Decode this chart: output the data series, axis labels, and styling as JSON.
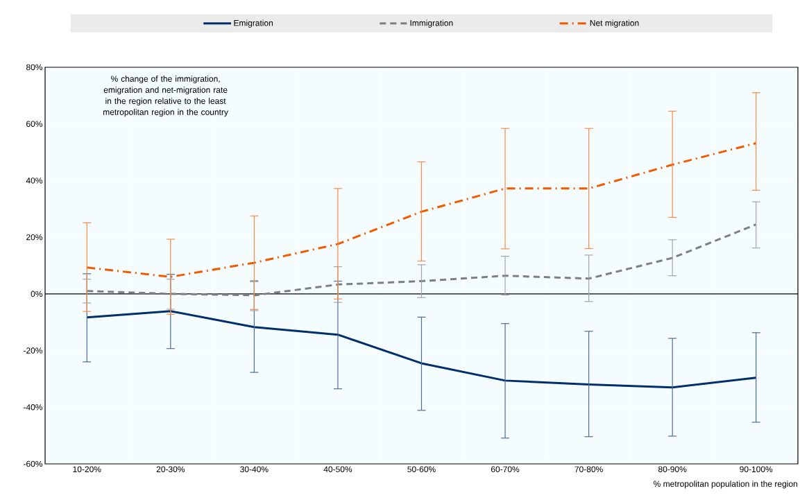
{
  "chart_data": {
    "type": "line",
    "categories": [
      "10-20%",
      "20-30%",
      "30-40%",
      "40-50%",
      "50-60%",
      "60-70%",
      "70-80%",
      "80-90%",
      "90-100%"
    ],
    "xlabel": "% metropolitan population in the region",
    "annotations": [
      "% change of the immigration, emigration and net-migration rate in the region relative to the least metropolitan region in the country"
    ],
    "ylim": [
      -60,
      80
    ],
    "yticks": [
      {
        "value": -60,
        "label": "-60%"
      },
      {
        "value": -40,
        "label": "-40%"
      },
      {
        "value": -20,
        "label": "-20%"
      },
      {
        "value": 0,
        "label": "0%"
      },
      {
        "value": 20,
        "label": "20%"
      },
      {
        "value": 40,
        "label": "40%"
      },
      {
        "value": 60,
        "label": "60%"
      },
      {
        "value": 80,
        "label": "80%"
      }
    ],
    "grid": true,
    "legend": "top",
    "marker": "none",
    "series": [
      {
        "name": "Emigration",
        "color": "#002f6c",
        "line_style": "solid",
        "values": [
          -8.3,
          -6.1,
          -11.7,
          -14.4,
          -24.5,
          -30.6,
          -32.0,
          -33.0,
          -29.6
        ],
        "errors": [
          [
            -24.0,
            7.1
          ],
          [
            -19.3,
            6.9
          ],
          [
            -27.7,
            4.4
          ],
          [
            -33.5,
            4.5
          ],
          [
            -41.1,
            -8.2
          ],
          [
            -50.9,
            -10.5
          ],
          [
            -50.4,
            -13.2
          ],
          [
            -50.2,
            -15.7
          ],
          [
            -45.3,
            -13.7
          ]
        ]
      },
      {
        "name": "Immigration",
        "color": "#7f7f7f",
        "line_style": "dashed",
        "values": [
          1.0,
          0.0,
          -0.5,
          3.3,
          4.5,
          6.4,
          5.4,
          12.7,
          24.5
        ],
        "errors": [
          [
            -3.2,
            5.2
          ],
          [
            -5.4,
            5.2
          ],
          [
            -5.9,
            4.7
          ],
          [
            -3.0,
            9.6
          ],
          [
            -1.3,
            10.3
          ],
          [
            -0.4,
            13.3
          ],
          [
            -2.7,
            13.7
          ],
          [
            6.4,
            19.1
          ],
          [
            16.2,
            32.5
          ]
        ]
      },
      {
        "name": "Net migration",
        "color": "#f15a00",
        "line_style": "dashdot",
        "values": [
          9.3,
          6.0,
          11.0,
          17.6,
          29.0,
          37.2,
          37.2,
          45.6,
          53.2
        ],
        "errors": [
          [
            -6.2,
            25.1
          ],
          [
            -7.2,
            19.3
          ],
          [
            -5.5,
            27.5
          ],
          [
            -1.8,
            37.2
          ],
          [
            11.6,
            46.6
          ],
          [
            15.9,
            58.4
          ],
          [
            16.0,
            58.4
          ],
          [
            27.0,
            64.5
          ],
          [
            36.6,
            71.0
          ]
        ]
      }
    ]
  }
}
